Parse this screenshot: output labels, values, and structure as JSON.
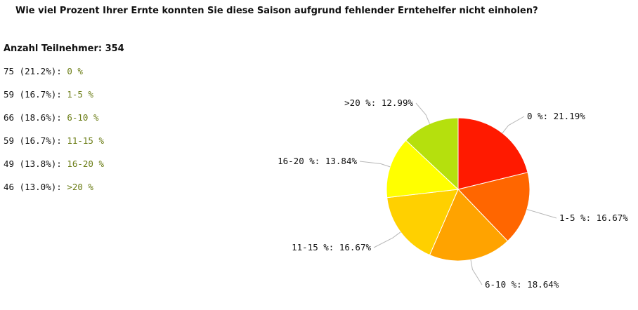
{
  "question": "Wie viel Prozent Ihrer Ernte konnten Sie diese Saison aufgrund fehlender Erntehelfer nicht einholen?",
  "participants": "Anzahl Teilnehmer: 354",
  "results": [
    {
      "count_text": "75 (21.2%): ",
      "label": "0 %"
    },
    {
      "count_text": "59 (16.7%): ",
      "label": "1-5 %"
    },
    {
      "count_text": "66 (18.6%): ",
      "label": "6-10 %"
    },
    {
      "count_text": "59 (16.7%): ",
      "label": "11-15 %"
    },
    {
      "count_text": "49 (13.8%): ",
      "label": "16-20 %"
    },
    {
      "count_text": "46 (13.0%): ",
      "label": ">20 %"
    }
  ],
  "chart_data": {
    "type": "pie",
    "title": "",
    "categories": [
      "0 %",
      "1-5 %",
      "6-10 %",
      "11-15 %",
      "16-20 %",
      ">20 %"
    ],
    "values": [
      21.19,
      16.67,
      18.64,
      16.67,
      13.84,
      12.99
    ],
    "data_labels": [
      "0 %: 21.19%",
      "1-5 %: 16.67%",
      "6-10 %: 18.64%",
      "11-15 %: 16.67%",
      "16-20 %: 13.84%",
      ">20 %: 12.99%"
    ],
    "colors": [
      "#ff1a00",
      "#ff6600",
      "#ffa300",
      "#ffd000",
      "#ffff00",
      "#b5e00d"
    ],
    "legend": "none"
  }
}
